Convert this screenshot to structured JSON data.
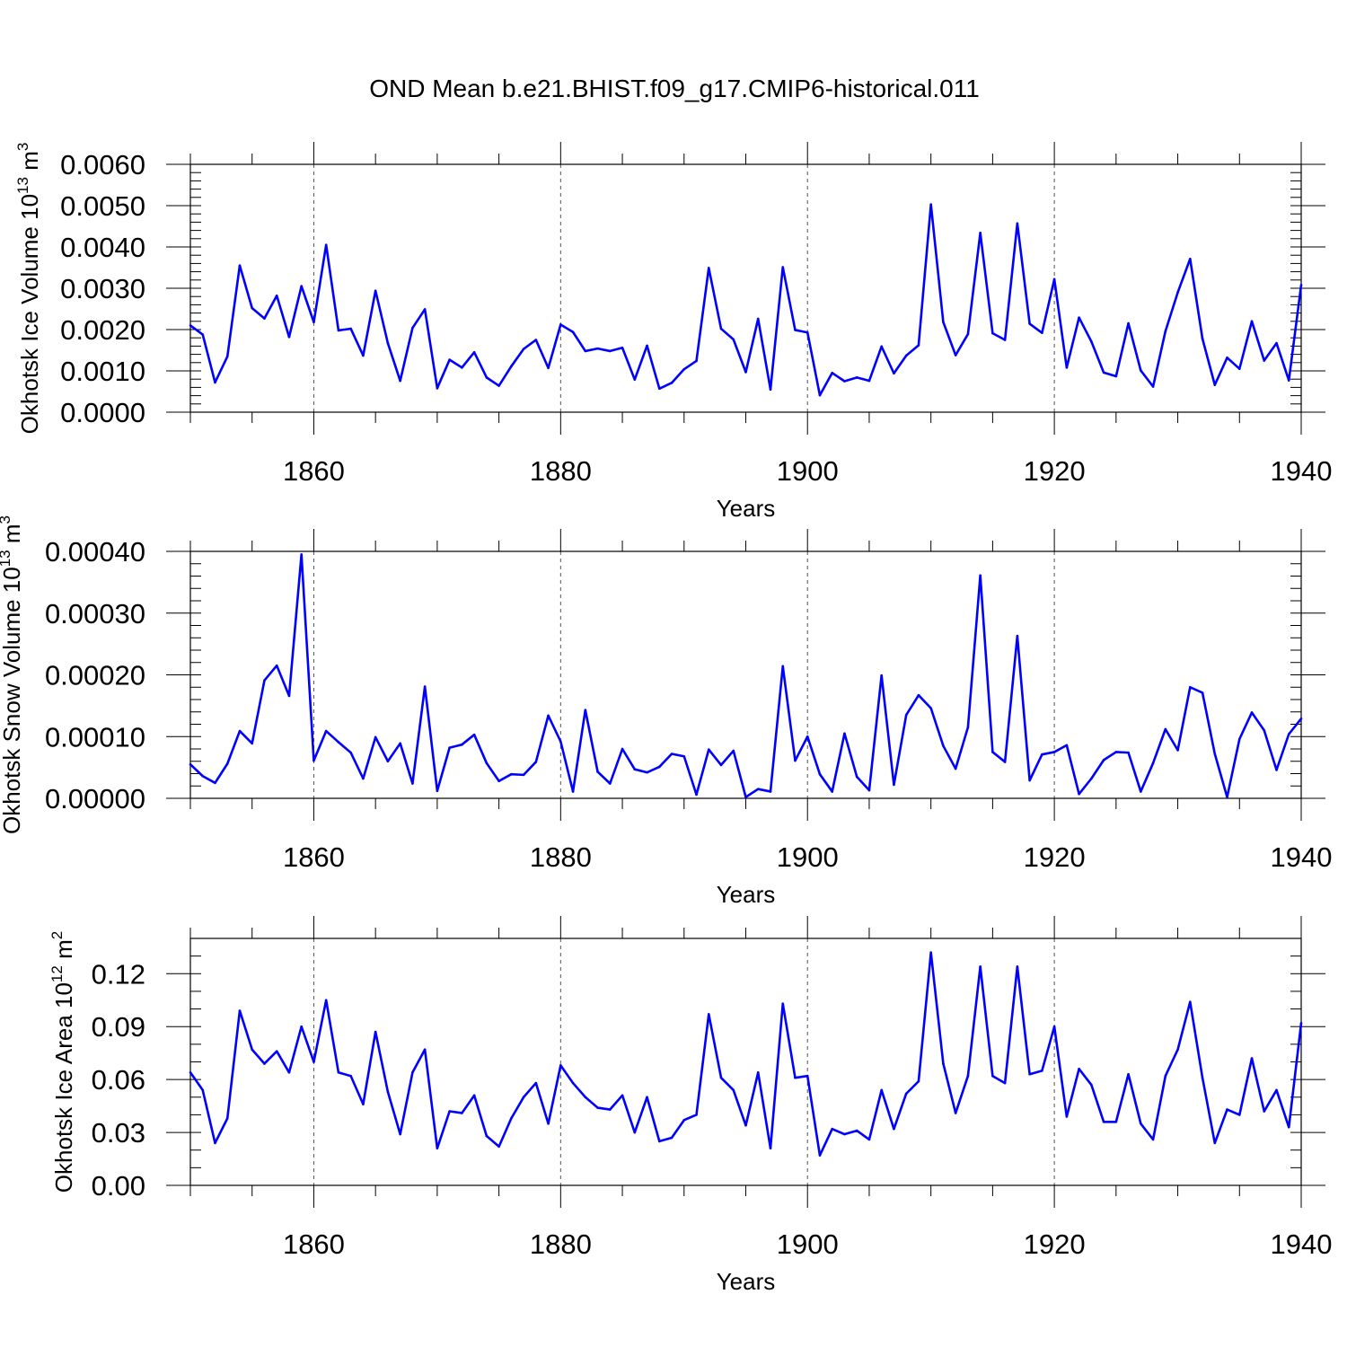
{
  "title": "OND Mean b.e21.BHIST.f09_g17.CMIP6-historical.011",
  "line_color": "#0000ff",
  "chart_data": [
    {
      "type": "line",
      "ylabel": "Okhotsk Ice Volume 10",
      "ylabel_sup": "13",
      "ylabel_unit": " m",
      "ylabel_unit_sup": "3",
      "xlabel": "Years",
      "xlim": [
        1850,
        1940
      ],
      "ylim": [
        0,
        0.006
      ],
      "x_ticks": [
        1860,
        1880,
        1900,
        1920,
        1940
      ],
      "x_tick_labels": [
        "1860",
        "1880",
        "1900",
        "1920",
        "1940"
      ],
      "y_ticks": [
        0,
        0.001,
        0.002,
        0.003,
        0.004,
        0.005,
        0.006
      ],
      "y_tick_labels": [
        "0.0000",
        "0.0010",
        "0.0020",
        "0.0030",
        "0.0040",
        "0.0050",
        "0.0060"
      ],
      "y_minor_step": 0.0002,
      "x_start": 1850,
      "values": [
        0.0021,
        0.00188,
        0.00072,
        0.00135,
        0.00355,
        0.00252,
        0.00227,
        0.00282,
        0.00182,
        0.00305,
        0.00218,
        0.00405,
        0.00198,
        0.00202,
        0.00137,
        0.00294,
        0.00167,
        0.00076,
        0.00204,
        0.00249,
        0.00058,
        0.00127,
        0.00108,
        0.00145,
        0.00084,
        0.00064,
        0.00111,
        0.00153,
        0.00175,
        0.00107,
        0.00212,
        0.00194,
        0.00148,
        0.00154,
        0.00148,
        0.00156,
        0.00079,
        0.00161,
        0.00057,
        0.00071,
        0.00104,
        0.00124,
        0.00349,
        0.00202,
        0.00176,
        0.00097,
        0.00226,
        0.00055,
        0.00351,
        0.00199,
        0.00193,
        0.00041,
        0.00095,
        0.00075,
        0.00084,
        0.00076,
        0.00159,
        0.00094,
        0.00137,
        0.00162,
        0.00503,
        0.00218,
        0.00138,
        0.00189,
        0.00434,
        0.00191,
        0.00175,
        0.00457,
        0.00214,
        0.00192,
        0.00322,
        0.00108,
        0.00229,
        0.00171,
        0.00096,
        0.00087,
        0.00215,
        0.00101,
        0.00062,
        0.00196,
        0.0029,
        0.00371,
        0.00178,
        0.00066,
        0.00132,
        0.00105,
        0.0022,
        0.00125,
        0.00167,
        0.00077,
        0.00308
      ]
    },
    {
      "type": "line",
      "ylabel": "Okhotsk Snow Volume 10",
      "ylabel_sup": "13",
      "ylabel_unit": " m",
      "ylabel_unit_sup": "3",
      "xlabel": "Years",
      "xlim": [
        1850,
        1940
      ],
      "ylim": [
        0,
        0.0004
      ],
      "x_ticks": [
        1860,
        1880,
        1900,
        1920,
        1940
      ],
      "x_tick_labels": [
        "1860",
        "1880",
        "1900",
        "1920",
        "1940"
      ],
      "y_ticks": [
        0,
        0.0001,
        0.0002,
        0.0003,
        0.0004
      ],
      "y_tick_labels": [
        "0.00000",
        "0.00010",
        "0.00020",
        "0.00030",
        "0.00040"
      ],
      "y_minor_step": 2e-05,
      "x_start": 1850,
      "values": [
        5.5e-05,
        3.6e-05,
        2.5e-05,
        5.6e-05,
        0.000109,
        8.9e-05,
        0.000191,
        0.000215,
        0.000166,
        0.000395,
        6.1e-05,
        0.000109,
        9.1e-05,
        7.4e-05,
        3.2e-05,
        9.9e-05,
        6e-05,
        8.9e-05,
        2.4e-05,
        0.000181,
        1.2e-05,
        8.2e-05,
        8.7e-05,
        0.000103,
        5.7e-05,
        2.8e-05,
        3.9e-05,
        3.8e-05,
        5.9e-05,
        0.000134,
        9.2e-05,
        1.1e-05,
        0.000143,
        4.3e-05,
        2.4e-05,
        8e-05,
        4.7e-05,
        4.2e-05,
        5.1e-05,
        7.2e-05,
        6.8e-05,
        6e-06,
        7.9e-05,
        5.4e-05,
        7.7e-05,
        2e-06,
        1.5e-05,
        1.1e-05,
        0.000214,
        6.1e-05,
        0.0001,
        3.9e-05,
        1.1e-05,
        0.000105,
        3.5e-05,
        1.3e-05,
        0.000199,
        2.2e-05,
        0.000135,
        0.000167,
        0.000146,
        8.5e-05,
        4.8e-05,
        0.000115,
        0.000361,
        7.5e-05,
        5.9e-05,
        0.000263,
        2.9e-05,
        7.1e-05,
        7.5e-05,
        8.6e-05,
        7e-06,
        3.2e-05,
        6.2e-05,
        7.5e-05,
        7.4e-05,
        1.1e-05,
        5.7e-05,
        0.000112,
        7.8e-05,
        0.00018,
        0.000171,
        7.2e-05,
        2e-06,
        9.6e-05,
        0.000139,
        0.00011,
        4.6e-05,
        0.000104,
        0.000129
      ]
    },
    {
      "type": "line",
      "ylabel": "Okhotsk Ice Area 10",
      "ylabel_sup": "12",
      "ylabel_unit": " m",
      "ylabel_unit_sup": "2",
      "xlabel": "Years",
      "xlim": [
        1850,
        1940
      ],
      "ylim": [
        0,
        0.14
      ],
      "x_ticks": [
        1860,
        1880,
        1900,
        1920,
        1940
      ],
      "x_tick_labels": [
        "1860",
        "1880",
        "1900",
        "1920",
        "1940"
      ],
      "y_ticks": [
        0,
        0.03,
        0.06,
        0.09,
        0.12
      ],
      "y_tick_labels": [
        "0.00",
        "0.03",
        "0.06",
        "0.09",
        "0.12"
      ],
      "y_minor_step": 0.01,
      "x_start": 1850,
      "values": [
        0.064,
        0.054,
        0.024,
        0.038,
        0.099,
        0.077,
        0.069,
        0.076,
        0.064,
        0.09,
        0.07,
        0.105,
        0.064,
        0.062,
        0.046,
        0.087,
        0.053,
        0.029,
        0.064,
        0.077,
        0.021,
        0.042,
        0.041,
        0.051,
        0.028,
        0.022,
        0.038,
        0.05,
        0.058,
        0.035,
        0.068,
        0.058,
        0.05,
        0.044,
        0.043,
        0.051,
        0.03,
        0.05,
        0.025,
        0.027,
        0.037,
        0.04,
        0.097,
        0.061,
        0.054,
        0.034,
        0.064,
        0.021,
        0.103,
        0.061,
        0.062,
        0.017,
        0.032,
        0.029,
        0.031,
        0.026,
        0.054,
        0.032,
        0.052,
        0.059,
        0.132,
        0.069,
        0.041,
        0.062,
        0.124,
        0.062,
        0.058,
        0.124,
        0.063,
        0.065,
        0.09,
        0.039,
        0.066,
        0.057,
        0.036,
        0.036,
        0.063,
        0.035,
        0.026,
        0.062,
        0.077,
        0.104,
        0.061,
        0.024,
        0.043,
        0.04,
        0.072,
        0.042,
        0.054,
        0.033,
        0.092
      ]
    }
  ]
}
